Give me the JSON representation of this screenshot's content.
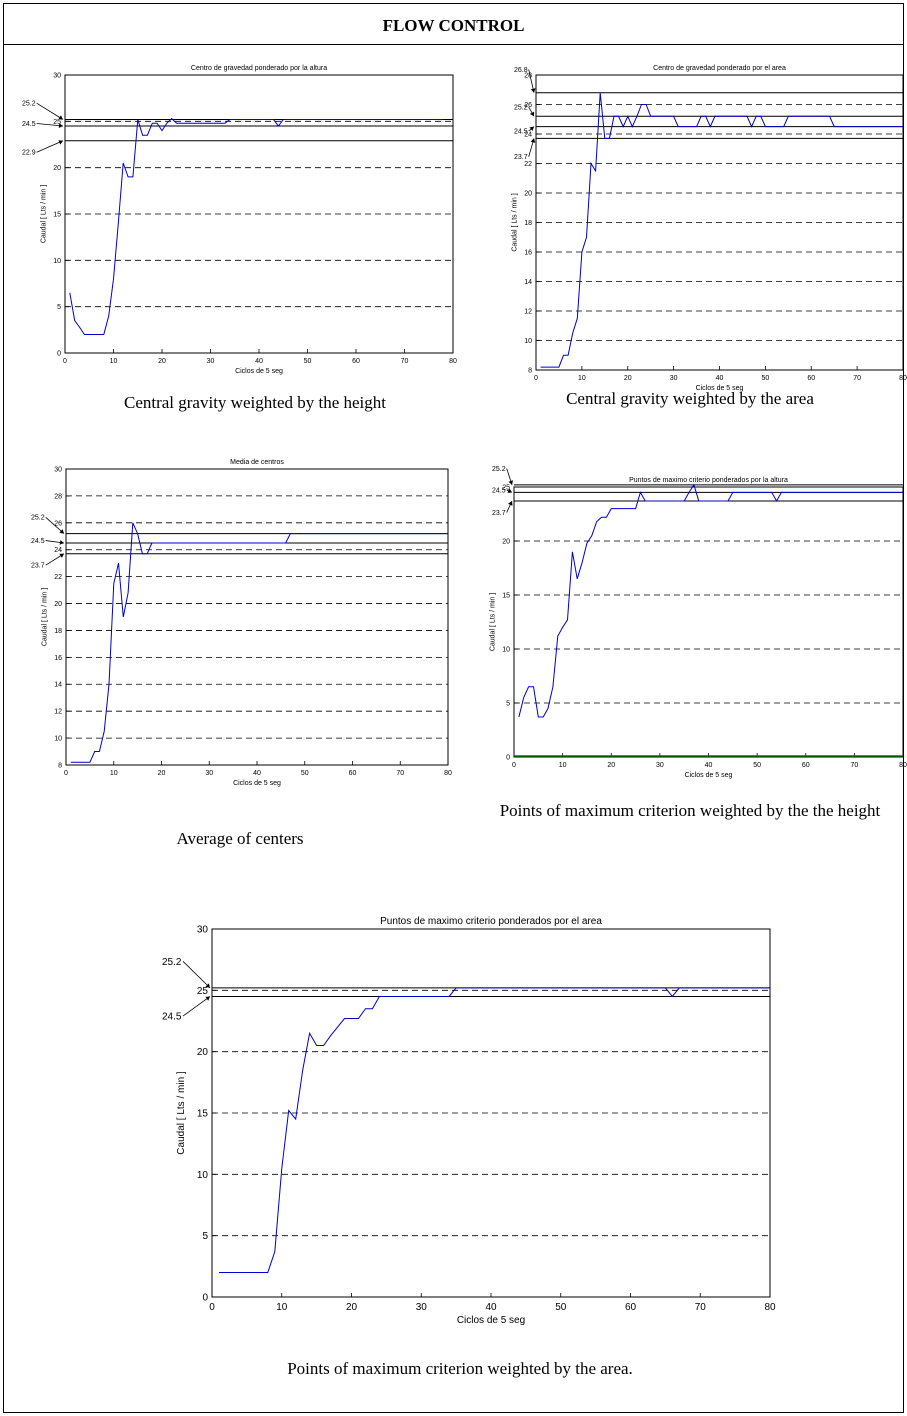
{
  "page": {
    "title": "FLOW CONTROL"
  },
  "colors": {
    "series": "#0000cc",
    "grid": "#000000",
    "ref": "#000000",
    "baseline": "#007700"
  },
  "captions": [
    "Central gravity weighted by the height",
    "Central gravity weighted by the area",
    "Average of centers",
    "Points of maximum criterion weighted by the the height",
    "Points of maximum criterion weighted by the area."
  ],
  "chart_data": [
    {
      "type": "line",
      "title": "Centro de gravedad ponderado por la altura",
      "xlabel": "Ciclos de 5 seg",
      "ylabel": "Caudal [ Lts / min ]",
      "xlim": [
        0,
        80
      ],
      "ylim": [
        0,
        30
      ],
      "xticks": [
        0,
        10,
        20,
        30,
        40,
        50,
        60,
        70,
        80
      ],
      "yticks": [
        0,
        5,
        10,
        15,
        20,
        25,
        30
      ],
      "grid": "dashed-horizontal",
      "reference_lines": [
        25.2,
        24.5,
        22.9
      ],
      "reference_labels": [
        {
          "text": "25.2",
          "y": 25.2
        },
        {
          "text": "24.5",
          "y": 24.5
        },
        {
          "text": "22.9",
          "y": 22.9
        }
      ],
      "series": [
        {
          "x": [
            1,
            2,
            3,
            4,
            5,
            6,
            7,
            8,
            9,
            10,
            11,
            12,
            13,
            14,
            15,
            16,
            17,
            18,
            19,
            20,
            21,
            22,
            23,
            24,
            25,
            26,
            27,
            28,
            29,
            30,
            31,
            32,
            33,
            34,
            35,
            36,
            37,
            38,
            39,
            40,
            41,
            42,
            43,
            44,
            45,
            46,
            47,
            48,
            49,
            50,
            51,
            52,
            53,
            54,
            55,
            56,
            57,
            58,
            59,
            60,
            61,
            62,
            63,
            64,
            65,
            66,
            67,
            68,
            69,
            70,
            71,
            72,
            73,
            74,
            75,
            76,
            77,
            78
          ],
          "y": [
            6.5,
            3.5,
            2.8,
            2.0,
            2.0,
            2.0,
            2.0,
            2.0,
            4.0,
            8.0,
            14.0,
            20.5,
            19.0,
            19.0,
            25.2,
            23.5,
            23.5,
            24.8,
            24.8,
            24.0,
            24.8,
            25.3,
            24.8,
            24.8,
            24.8,
            24.8,
            24.8,
            24.8,
            24.8,
            24.8,
            24.8,
            24.8,
            24.8,
            25.2,
            25.2,
            25.2,
            25.2,
            25.2,
            25.2,
            25.2,
            25.2,
            25.2,
            25.2,
            24.5,
            25.2,
            25.2,
            25.2,
            25.2,
            25.2,
            25.2,
            25.2,
            25.2,
            25.2,
            25.2,
            25.2,
            25.2,
            25.2,
            25.2,
            25.2,
            25.2,
            25.2,
            25.2,
            25.2,
            25.2,
            25.2,
            25.2,
            25.2,
            25.2,
            25.2,
            25.2,
            25.2,
            25.2,
            25.2,
            25.2,
            25.2,
            25.2,
            25.2,
            25.2
          ]
        }
      ]
    },
    {
      "type": "line",
      "title": "Centro de gravedad ponderado por el area",
      "xlabel": "Ciclos de 5 seg",
      "ylabel": "Caudal [ Lts / min ]",
      "xlim": [
        0,
        80
      ],
      "ylim": [
        8,
        28
      ],
      "xticks": [
        0,
        10,
        20,
        30,
        40,
        50,
        60,
        70,
        80
      ],
      "yticks": [
        8,
        10,
        12,
        14,
        16,
        18,
        20,
        22,
        24,
        26,
        28
      ],
      "grid": "dashed-horizontal",
      "reference_lines": [
        26.8,
        25.2,
        24.5,
        23.7
      ],
      "reference_labels": [
        {
          "text": "26.8",
          "y": 26.8
        },
        {
          "text": "25.2",
          "y": 25.2
        },
        {
          "text": "24.5",
          "y": 24.5
        },
        {
          "text": "23.7",
          "y": 23.7
        }
      ],
      "series": [
        {
          "x": [
            1,
            2,
            3,
            4,
            5,
            6,
            7,
            8,
            9,
            10,
            11,
            12,
            13,
            14,
            15,
            16,
            17,
            18,
            19,
            20,
            21,
            22,
            23,
            24,
            25,
            26,
            27,
            28,
            29,
            30,
            31,
            32,
            33,
            34,
            35,
            36,
            37,
            38,
            39,
            40,
            41,
            42,
            43,
            44,
            45,
            46,
            47,
            48,
            49,
            50,
            51,
            52,
            53,
            54,
            55,
            56,
            57,
            58,
            59,
            60,
            61,
            62,
            63,
            64,
            65,
            66,
            67,
            68,
            69,
            70,
            71,
            72,
            73,
            74,
            75,
            76,
            77,
            78,
            79,
            80
          ],
          "y": [
            8.2,
            8.2,
            8.2,
            8.2,
            8.2,
            9.0,
            9.0,
            10.5,
            11.5,
            16.0,
            17.0,
            22.0,
            21.5,
            26.8,
            23.7,
            23.7,
            25.2,
            25.2,
            24.5,
            25.2,
            24.5,
            25.2,
            26.0,
            26.0,
            25.2,
            25.2,
            25.2,
            25.2,
            25.2,
            25.2,
            24.5,
            24.5,
            24.5,
            24.5,
            24.5,
            25.2,
            25.2,
            24.5,
            25.2,
            25.2,
            25.2,
            25.2,
            25.2,
            25.2,
            25.2,
            25.2,
            24.5,
            25.2,
            25.2,
            24.5,
            24.5,
            24.5,
            24.5,
            24.5,
            25.2,
            25.2,
            25.2,
            25.2,
            25.2,
            25.2,
            25.2,
            25.2,
            25.2,
            25.2,
            24.5,
            24.5,
            24.5,
            24.5,
            24.5,
            24.5,
            24.5,
            24.5,
            24.5,
            24.5,
            24.5,
            24.5,
            24.5,
            24.5,
            24.5,
            24.5
          ]
        }
      ]
    },
    {
      "type": "line",
      "title": "Media de centros",
      "xlabel": "Ciclos de 5 seg",
      "ylabel": "Caudal [ Lts / min ]",
      "xlim": [
        0,
        80
      ],
      "ylim": [
        8,
        30
      ],
      "xticks": [
        0,
        10,
        20,
        30,
        40,
        50,
        60,
        70,
        80
      ],
      "yticks": [
        8,
        10,
        12,
        14,
        16,
        18,
        20,
        22,
        24,
        26,
        28,
        30
      ],
      "grid": "dashed-horizontal",
      "reference_lines": [
        25.2,
        24.5,
        23.7
      ],
      "reference_labels": [
        {
          "text": "25.2",
          "y": 25.2
        },
        {
          "text": "24.5",
          "y": 24.5
        },
        {
          "text": "23.7",
          "y": 23.7
        }
      ],
      "series": [
        {
          "x": [
            1,
            2,
            3,
            4,
            5,
            6,
            7,
            8,
            9,
            10,
            11,
            12,
            13,
            14,
            15,
            16,
            17,
            18,
            19,
            20,
            21,
            22,
            23,
            24,
            25,
            26,
            27,
            28,
            29,
            30,
            31,
            32,
            33,
            34,
            35,
            36,
            37,
            38,
            39,
            40,
            41,
            42,
            43,
            44,
            45,
            46,
            47,
            48,
            49,
            50,
            51,
            52,
            53,
            54,
            55,
            56,
            57,
            58,
            59,
            60,
            61,
            62,
            63,
            64,
            65,
            66,
            67,
            68,
            69,
            70,
            71,
            72,
            73,
            74,
            75,
            76,
            77,
            78,
            79,
            80
          ],
          "y": [
            8.2,
            8.2,
            8.2,
            8.2,
            8.2,
            9.0,
            9.0,
            10.5,
            14.0,
            21.5,
            23.0,
            19.0,
            20.8,
            26.0,
            25.2,
            23.7,
            23.7,
            24.5,
            24.5,
            24.5,
            24.5,
            24.5,
            24.5,
            24.5,
            24.5,
            24.5,
            24.5,
            24.5,
            24.5,
            24.5,
            24.5,
            24.5,
            24.5,
            24.5,
            24.5,
            24.5,
            24.5,
            24.5,
            24.5,
            24.5,
            24.5,
            24.5,
            24.5,
            24.5,
            24.5,
            24.5,
            25.2,
            25.2,
            25.2,
            25.2,
            25.2,
            25.2,
            25.2,
            25.2,
            25.2,
            25.2,
            25.2,
            25.2,
            25.2,
            25.2,
            25.2,
            25.2,
            25.2,
            25.2,
            25.2,
            25.2,
            25.2,
            25.2,
            25.2,
            25.2,
            25.2,
            25.2,
            25.2,
            25.2,
            25.2,
            25.2,
            25.2,
            25.2,
            25.2,
            25.2
          ]
        }
      ]
    },
    {
      "type": "line",
      "title": "Puntos de maximo criterio ponderados por la altura",
      "xlabel": "Ciclos de 5 seg",
      "ylabel": "Caudal [ Lts / min ]",
      "xlim": [
        0,
        80
      ],
      "ylim": [
        0,
        25
      ],
      "xticks": [
        0,
        10,
        20,
        30,
        40,
        50,
        60,
        70,
        80
      ],
      "yticks": [
        0,
        5,
        10,
        15,
        20,
        25
      ],
      "grid": "dashed-horizontal",
      "reference_lines": [
        25.2,
        24.5,
        23.7
      ],
      "reference_labels": [
        {
          "text": "25.2",
          "y": 25.2
        },
        {
          "text": "24.5",
          "y": 24.5
        },
        {
          "text": "23.7",
          "y": 23.7
        }
      ],
      "series": [
        {
          "x": [
            1,
            2,
            3,
            4,
            5,
            6,
            7,
            8,
            9,
            10,
            11,
            12,
            13,
            14,
            15,
            16,
            17,
            18,
            19,
            20,
            21,
            22,
            23,
            24,
            25,
            26,
            27,
            28,
            29,
            30,
            31,
            32,
            33,
            34,
            35,
            36,
            37,
            38,
            39,
            40,
            41,
            42,
            43,
            44,
            45,
            46,
            47,
            48,
            49,
            50,
            51,
            52,
            53,
            54,
            55,
            56,
            57,
            58,
            59,
            60,
            61,
            62,
            63,
            64,
            65,
            66,
            67,
            68,
            69,
            70,
            71,
            72,
            73,
            74,
            75,
            76,
            77,
            78,
            79,
            80
          ],
          "y": [
            3.7,
            5.5,
            6.5,
            6.5,
            3.7,
            3.7,
            4.5,
            6.5,
            11.2,
            12.0,
            12.7,
            19.0,
            16.5,
            18.0,
            19.8,
            20.5,
            21.8,
            22.2,
            22.2,
            23.0,
            23.0,
            23.0,
            23.0,
            23.0,
            23.0,
            24.5,
            23.7,
            23.7,
            23.7,
            23.7,
            23.7,
            23.7,
            23.7,
            23.7,
            23.7,
            24.5,
            25.2,
            23.7,
            23.7,
            23.7,
            23.7,
            23.7,
            23.7,
            23.7,
            24.5,
            24.5,
            24.5,
            24.5,
            24.5,
            24.5,
            24.5,
            24.5,
            24.5,
            23.7,
            24.5,
            24.5,
            24.5,
            24.5,
            24.5,
            24.5,
            24.5,
            24.5,
            24.5,
            24.5,
            24.5,
            24.5,
            24.5,
            24.5,
            24.5,
            24.5,
            24.5,
            24.5,
            24.5,
            24.5,
            24.5,
            24.5,
            24.5,
            24.5,
            24.5,
            24.5
          ]
        }
      ]
    },
    {
      "type": "line",
      "title": "Puntos de maximo criterio ponderados por el area",
      "xlabel": "Ciclos de 5 seg",
      "ylabel": "Caudal [ Lts / min ]",
      "xlim": [
        0,
        80
      ],
      "ylim": [
        0,
        30
      ],
      "xticks": [
        0,
        10,
        20,
        30,
        40,
        50,
        60,
        70,
        80
      ],
      "yticks": [
        0,
        5,
        10,
        15,
        20,
        25,
        30
      ],
      "grid": "dashed-horizontal",
      "reference_lines": [
        25.2,
        24.5
      ],
      "reference_labels": [
        {
          "text": "25.2",
          "y": 25.2
        },
        {
          "text": "24.5",
          "y": 24.5
        }
      ],
      "series": [
        {
          "x": [
            1,
            2,
            3,
            4,
            5,
            6,
            7,
            8,
            9,
            10,
            11,
            12,
            13,
            14,
            15,
            16,
            17,
            18,
            19,
            20,
            21,
            22,
            23,
            24,
            25,
            26,
            27,
            28,
            29,
            30,
            31,
            32,
            33,
            34,
            35,
            36,
            37,
            38,
            39,
            40,
            41,
            42,
            43,
            44,
            45,
            46,
            47,
            48,
            49,
            50,
            51,
            52,
            53,
            54,
            55,
            56,
            57,
            58,
            59,
            60,
            61,
            62,
            63,
            64,
            65,
            66,
            67,
            68,
            69,
            70,
            71,
            72,
            73,
            74,
            75,
            76,
            77,
            78,
            79,
            80
          ],
          "y": [
            2.0,
            2.0,
            2.0,
            2.0,
            2.0,
            2.0,
            2.0,
            2.0,
            3.7,
            10.5,
            15.2,
            14.5,
            18.5,
            21.5,
            20.5,
            20.5,
            21.3,
            22.0,
            22.7,
            22.7,
            22.7,
            23.5,
            23.5,
            24.5,
            24.5,
            24.5,
            24.5,
            24.5,
            24.5,
            24.5,
            24.5,
            24.5,
            24.5,
            24.5,
            25.2,
            25.2,
            25.2,
            25.2,
            25.2,
            25.2,
            25.2,
            25.2,
            25.2,
            25.2,
            25.2,
            25.2,
            25.2,
            25.2,
            25.2,
            25.2,
            25.2,
            25.2,
            25.2,
            25.2,
            25.2,
            25.2,
            25.2,
            25.2,
            25.2,
            25.2,
            25.2,
            25.2,
            25.2,
            25.2,
            25.2,
            24.5,
            25.2,
            25.2,
            25.2,
            25.2,
            25.2,
            25.2,
            25.2,
            25.2,
            25.2,
            25.2,
            25.2,
            25.2,
            25.2,
            25.2
          ]
        }
      ]
    }
  ]
}
